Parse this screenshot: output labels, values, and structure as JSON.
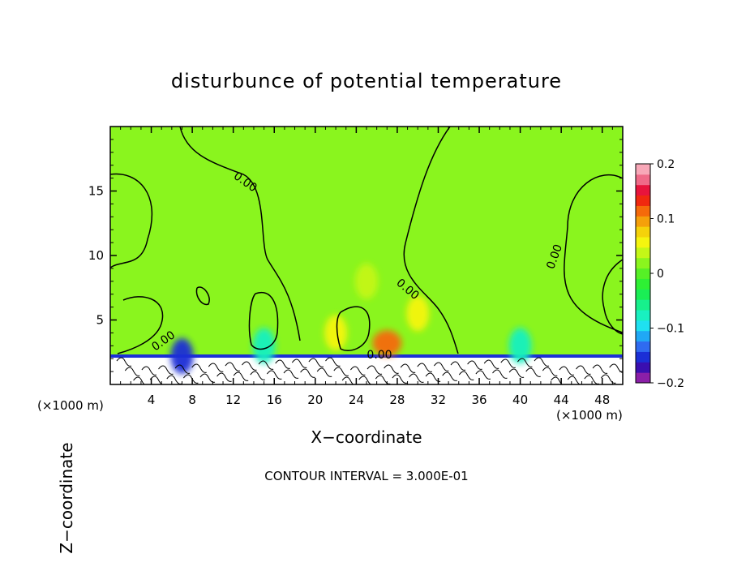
{
  "chart_data": {
    "type": "heatmap",
    "title": "disturbunce of potential temperature",
    "xlabel": "X−coordinate",
    "ylabel": "Z−coordinate",
    "x_unit_label": "(×1000 m)",
    "x_unit_label_right": "(×1000 m)",
    "footnote": "CONTOUR INTERVAL = 3.000E-01",
    "xlim": [
      0,
      50
    ],
    "ylim": [
      0,
      20
    ],
    "x_ticks": [
      4,
      8,
      12,
      16,
      20,
      24,
      28,
      32,
      36,
      40,
      44,
      48
    ],
    "y_ticks": [
      5,
      10,
      15
    ],
    "colorbar": {
      "range": [
        -0.2,
        0.2
      ],
      "tick_values": [
        0.2,
        0.1,
        0,
        -0.1,
        -0.2
      ],
      "tick_labels": [
        "0.2",
        "0.1",
        "0",
        "−0.1",
        "−0.2"
      ],
      "colors": [
        "#8b1fa8",
        "#3a0fb0",
        "#1b2fd6",
        "#2f6bf0",
        "#20a8f5",
        "#1fe0f0",
        "#19f0c0",
        "#17f08c",
        "#1aee55",
        "#2ef034",
        "#56f026",
        "#8af51e",
        "#c4f717",
        "#f5f50f",
        "#f5d20a",
        "#f5a00a",
        "#f56a0a",
        "#f0280f",
        "#e8143c",
        "#f06a88",
        "#f8a8b8"
      ]
    },
    "contour_labels": [
      "0.00",
      "0.00",
      "0.00",
      "0.00",
      "0.00"
    ],
    "field_features": [
      {
        "x": 27,
        "z": 3.2,
        "value": 0.12
      },
      {
        "x": 30,
        "z": 5.5,
        "value": 0.05
      },
      {
        "x": 22,
        "z": 4.0,
        "value": 0.06
      },
      {
        "x": 25,
        "z": 8.0,
        "value": 0.03
      },
      {
        "x": 15,
        "z": 3.0,
        "value": -0.08
      },
      {
        "x": 40,
        "z": 3.0,
        "value": -0.08
      },
      {
        "x": 7,
        "z": 2.2,
        "value": -0.15
      }
    ],
    "grid": false,
    "legend": "right"
  }
}
